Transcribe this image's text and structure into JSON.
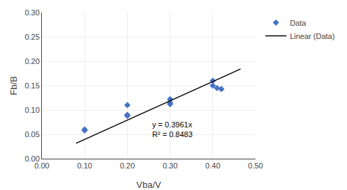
{
  "chart_data": {
    "type": "scatter",
    "x_label": "Vba/V",
    "y_label": "Fb/B",
    "series": [
      {
        "name": "Data",
        "type": "scatter",
        "color": "#4472C4",
        "marker": "diamond",
        "x": [
          0.1,
          0.1,
          0.2,
          0.2,
          0.2,
          0.3,
          0.3,
          0.3,
          0.4,
          0.4,
          0.41,
          0.42
        ],
        "values": [
          0.06,
          0.058,
          0.09,
          0.088,
          0.11,
          0.122,
          0.115,
          0.112,
          0.16,
          0.15,
          0.145,
          0.143
        ]
      },
      {
        "name": "Linear (Data)",
        "type": "line",
        "color": "#000000",
        "line_style": "solid",
        "x": [
          0.08,
          0.465
        ],
        "values": [
          0.031688,
          0.1841865
        ]
      }
    ],
    "annotations": [
      {
        "x": 0.255,
        "y": 0.082,
        "text": [
          "y = 0.3961x",
          "R² = 0.8483"
        ]
      }
    ],
    "xlim": [
      0.0,
      0.5
    ],
    "ylim": [
      0.0,
      0.3
    ],
    "xticks": [
      {
        "value": 0.0,
        "label": "0.00"
      },
      {
        "value": 0.1,
        "label": "0.10"
      },
      {
        "value": 0.2,
        "label": "0.20"
      },
      {
        "value": 0.3,
        "label": "0.30"
      },
      {
        "value": 0.4,
        "label": "0.40"
      },
      {
        "value": 0.5,
        "label": "0.50"
      }
    ],
    "yticks": [
      {
        "value": 0.0,
        "label": "0.00"
      },
      {
        "value": 0.05,
        "label": "0.05"
      },
      {
        "value": 0.1,
        "label": "0.10"
      },
      {
        "value": 0.15,
        "label": "0.15"
      },
      {
        "value": 0.2,
        "label": "0.20"
      },
      {
        "value": 0.25,
        "label": "0.25"
      },
      {
        "value": 0.3,
        "label": "0.30"
      }
    ],
    "grid": true,
    "legend": "right"
  }
}
